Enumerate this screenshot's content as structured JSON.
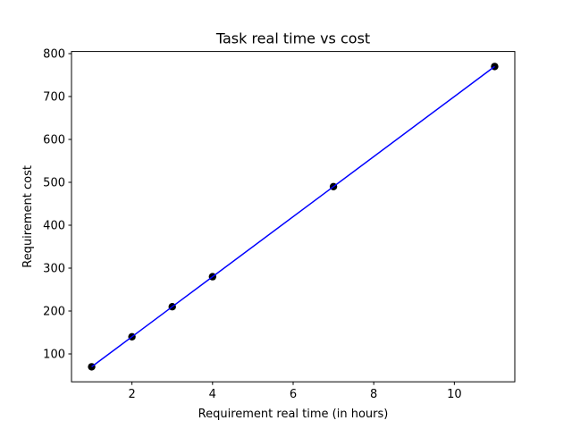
{
  "chart_data": {
    "type": "scatter",
    "title": "Task real time vs cost",
    "xlabel": "Requirement real time (in hours)",
    "ylabel": "Requirement cost",
    "xlim": [
      0.5,
      11.5
    ],
    "ylim": [
      35,
      805
    ],
    "xticks": [
      2,
      4,
      6,
      8,
      10
    ],
    "yticks": [
      100,
      200,
      300,
      400,
      500,
      600,
      700,
      800
    ],
    "grid": false,
    "series": [
      {
        "x": [
          1,
          2,
          3,
          4,
          7,
          11
        ],
        "y": [
          70,
          140,
          210,
          280,
          490,
          770
        ],
        "marker_color": "#000000",
        "line_color": "#0000ff"
      }
    ]
  }
}
